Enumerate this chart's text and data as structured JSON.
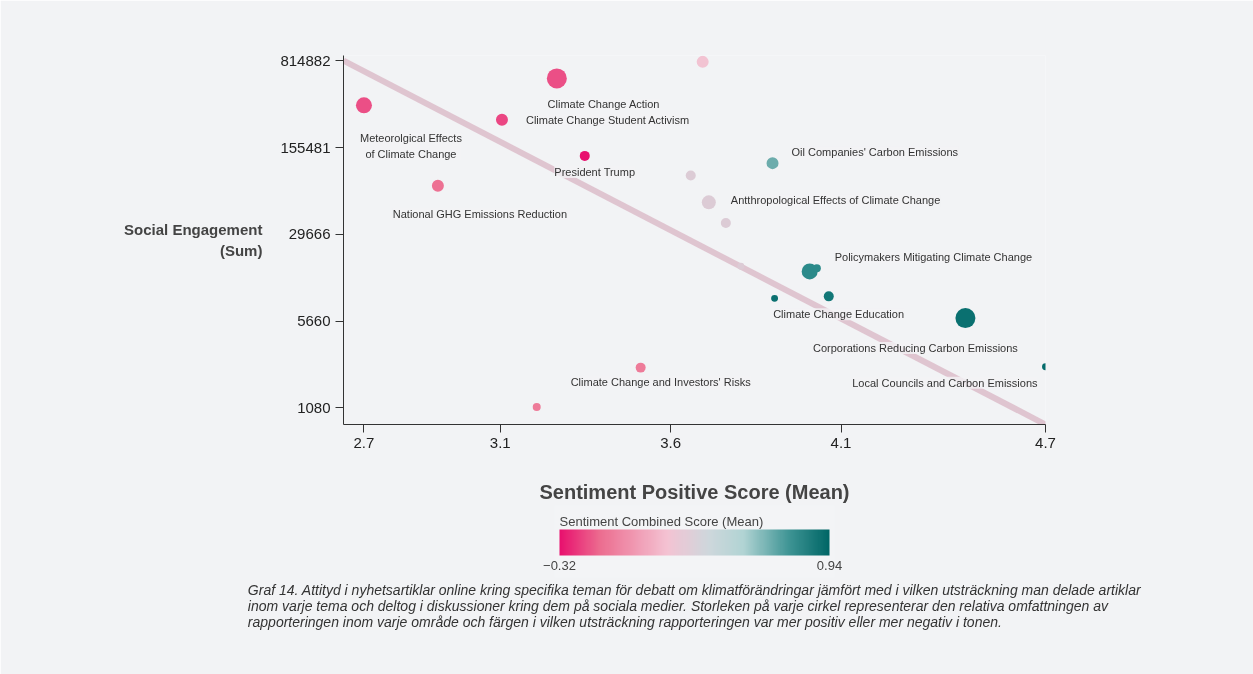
{
  "chart_data": {
    "type": "bubble",
    "xlabel": "Sentiment Positive Score (Mean)",
    "ylabel": "Social Engagement\n(Sum)",
    "clabel": "Sentiment Combined Score (Mean)",
    "log": "y",
    "grid": false,
    "xlim": [
      2.64,
      4.7
    ],
    "xticks": [
      2.7,
      3.1,
      3.6,
      4.1,
      4.7
    ],
    "ylim": [
      787,
      900000
    ],
    "yticks": [
      1080,
      5660,
      29666,
      155481,
      814882
    ],
    "clim": [
      -0.32,
      0.94
    ],
    "cticks": [
      -0.32,
      0.94
    ],
    "series": [
      {
        "x": [
          2.7,
          3.266,
          3.105,
          3.348,
          2.917,
          3.512,
          3.207,
          3.694,
          3.659,
          3.712,
          3.762,
          3.806,
          3.899,
          4.008,
          4.029,
          3.905,
          4.064,
          4.465,
          4.7
        ],
        "values": [
          348000,
          581000,
          264000,
          132500,
          74900,
          2330,
          1100,
          797000,
          91200,
          54600,
          36800,
          16100,
          115400,
          14600,
          15500,
          8740,
          9080,
          6000,
          2370
        ],
        "sizes": [
          0.64,
          1,
          0.36,
          0.25,
          0.36,
          0.25,
          0.16,
          0.36,
          0.25,
          0.49,
          0.25,
          0.12,
          0.36,
          0.64,
          0.16,
          0.12,
          0.25,
          1,
          0.12
        ],
        "colors": [
          "#eb4f86",
          "#eb4f86",
          "#eb4683",
          "#e8106e",
          "#ed7193",
          "#ee7b99",
          "#ee7b99",
          "#f2c3d2",
          "#dccbd5",
          "#dccbd5",
          "#dccbd5",
          "#dccbd5",
          "#6cacac",
          "#2b8a8a",
          "#2b8a8a",
          "#0a7070",
          "#127777",
          "#0a7070",
          "#056b6b"
        ]
      },
      {
        "type": "line",
        "color": "#dcbcc9",
        "x": [
          2.64,
          4.7
        ],
        "values": [
          814882,
          787
        ]
      }
    ],
    "annotations": [
      {
        "text": "Meteorolgical Effects\nof Climate Change",
        "x": 2.7,
        "y": 348000
      },
      {
        "text": "Climate Change Action",
        "x": 3.266,
        "y": 581000
      },
      {
        "text": "Climate Change Student Activism",
        "x": 3.105,
        "y": 264000
      },
      {
        "text": "President Trump",
        "x": 3.348,
        "y": 132500
      },
      {
        "text": "National GHG Emissions Reduction",
        "x": 2.917,
        "y": 74900
      },
      {
        "text": "Climate Change and Investors' Risks",
        "x": 3.512,
        "y": 2330
      },
      {
        "text": "Antthropological Effects of Climate Change",
        "x": 3.712,
        "y": 54600
      },
      {
        "text": "Oil Companies' Carbon Emissions",
        "x": 3.899,
        "y": 115400
      },
      {
        "text": "Policymakers Mitigating Climate Change",
        "x": 4.008,
        "y": 14600
      },
      {
        "text": "Climate Change Education",
        "x": 3.905,
        "y": 8740
      },
      {
        "text": "Corporations Reducing Carbon Emissions",
        "x": 4.465,
        "y": 6000
      },
      {
        "text": "Local Councils and Carbon Emissions",
        "x": 4.7,
        "y": 2370
      },
      "Graf 14. Attityd i nyhetsartiklar online kring specifika teman för debatt om klimatförändringar jämfört med i vilken utsträckning man delade artiklar inom varje tema och deltog i diskussioner kring dem på sociala medier. Storleken på varje cirkel representerar den relativa omfattningen av rapporteringen inom varje område och färgen i vilken utsträckning rapporteringen var mer positiv eller mer negativ i tonen."
    ]
  }
}
